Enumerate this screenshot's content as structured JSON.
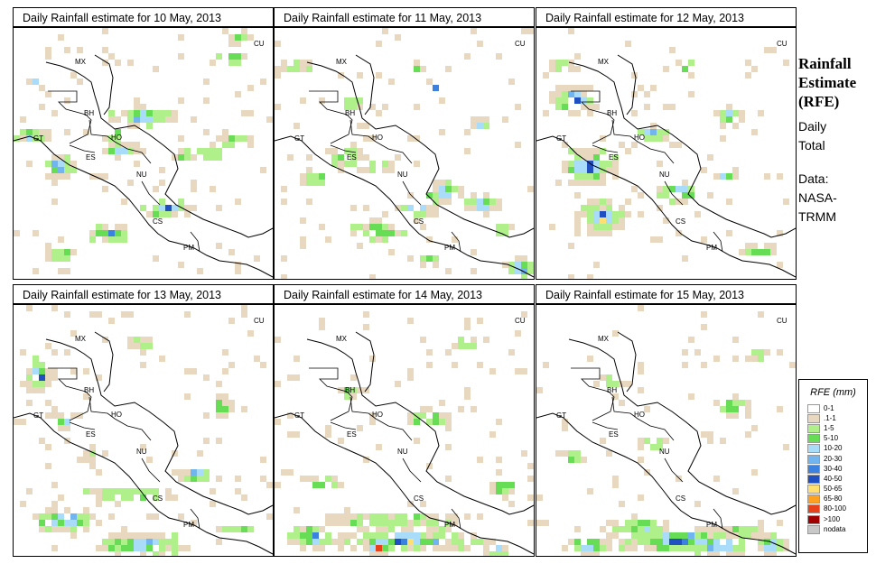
{
  "panels": [
    {
      "title": "Daily Rainfall estimate for  10 May, 2013",
      "rain": [
        [
          50,
          35,
          13,
          4,
          2
        ],
        [
          75,
          50,
          8,
          3,
          2
        ],
        [
          18,
          55,
          7,
          5,
          2
        ],
        [
          42,
          48,
          9,
          3,
          2
        ],
        [
          68,
          50,
          8,
          3,
          2
        ],
        [
          85,
          45,
          8,
          3,
          2
        ],
        [
          60,
          72,
          11,
          4,
          2
        ],
        [
          38,
          82,
          10,
          4,
          1
        ],
        [
          18,
          90,
          6,
          3,
          1
        ],
        [
          10,
          43,
          5,
          3,
          1
        ],
        [
          6,
          43,
          5,
          3,
          1
        ],
        [
          85,
          12,
          6,
          3,
          1
        ],
        [
          88,
          4,
          4,
          3,
          1
        ],
        [
          8,
          22,
          2,
          3,
          1
        ],
        [
          38,
          42,
          5,
          3,
          1
        ]
      ]
    },
    {
      "title": "Daily Rainfall estimate for  11 May, 2013",
      "rain": [
        [
          27,
          52,
          9,
          4,
          2
        ],
        [
          40,
          55,
          8,
          3,
          2
        ],
        [
          65,
          65,
          9,
          4,
          2
        ],
        [
          55,
          72,
          9,
          3,
          2
        ],
        [
          80,
          70,
          8,
          4,
          2
        ],
        [
          95,
          95,
          7,
          4,
          2
        ],
        [
          40,
          80,
          12,
          4,
          1
        ],
        [
          15,
          60,
          6,
          3,
          1
        ],
        [
          55,
          15,
          3,
          2,
          1
        ],
        [
          62,
          24,
          2,
          2,
          1
        ],
        [
          80,
          38,
          4,
          3,
          1
        ],
        [
          8,
          15,
          6,
          3,
          1
        ],
        [
          88,
          80,
          4,
          3,
          1
        ],
        [
          12,
          85,
          3,
          3,
          1
        ],
        [
          30,
          30,
          4,
          3,
          1
        ],
        [
          60,
          92,
          5,
          3,
          1
        ]
      ]
    },
    {
      "title": "Daily Rainfall estimate for  12 May, 2013",
      "rain": [
        [
          15,
          28,
          10,
          6,
          2
        ],
        [
          20,
          55,
          12,
          8,
          2
        ],
        [
          25,
          75,
          11,
          7,
          2
        ],
        [
          55,
          65,
          10,
          4,
          2
        ],
        [
          72,
          58,
          6,
          3,
          2
        ],
        [
          45,
          42,
          8,
          4,
          1
        ],
        [
          75,
          35,
          6,
          4,
          1
        ],
        [
          10,
          15,
          5,
          3,
          1
        ],
        [
          85,
          88,
          7,
          3,
          1
        ],
        [
          58,
          15,
          4,
          3,
          1
        ],
        [
          25,
          50,
          2,
          2,
          1
        ]
      ]
    },
    {
      "title": "Daily Rainfall estimate for  13 May, 2013",
      "rain": [
        [
          10,
          28,
          6,
          7,
          3
        ],
        [
          20,
          45,
          5,
          4,
          1
        ],
        [
          20,
          85,
          14,
          5,
          2
        ],
        [
          50,
          95,
          20,
          5,
          2
        ],
        [
          70,
          67,
          9,
          3,
          2
        ],
        [
          45,
          75,
          20,
          3,
          1
        ],
        [
          80,
          40,
          5,
          4,
          1
        ],
        [
          50,
          15,
          6,
          3,
          1
        ],
        [
          85,
          88,
          8,
          2,
          1
        ],
        [
          30,
          60,
          3,
          3,
          1
        ]
      ]
    },
    {
      "title": "Daily Rainfall estimate for  14 May, 2013",
      "rain": [
        [
          50,
          93,
          33,
          5,
          3
        ],
        [
          45,
          85,
          33,
          3,
          1
        ],
        [
          15,
          92,
          10,
          5,
          2
        ],
        [
          40,
          96,
          8,
          3,
          3
        ],
        [
          85,
          97,
          6,
          3,
          3
        ],
        [
          60,
          45,
          10,
          4,
          1
        ],
        [
          30,
          35,
          6,
          3,
          1
        ],
        [
          75,
          15,
          8,
          3,
          1
        ],
        [
          20,
          70,
          8,
          3,
          1
        ],
        [
          88,
          72,
          6,
          3,
          1
        ]
      ]
    },
    {
      "title": "Daily Rainfall estimate for  15 May, 2013",
      "rain": [
        [
          55,
          93,
          30,
          5,
          2
        ],
        [
          70,
          95,
          15,
          5,
          3
        ],
        [
          80,
          90,
          9,
          3,
          3
        ],
        [
          90,
          95,
          8,
          4,
          3
        ],
        [
          20,
          95,
          10,
          4,
          2
        ],
        [
          40,
          88,
          15,
          3,
          1
        ],
        [
          75,
          40,
          8,
          4,
          1
        ],
        [
          45,
          55,
          6,
          3,
          1
        ],
        [
          15,
          60,
          4,
          3,
          1
        ],
        [
          85,
          20,
          5,
          3,
          1
        ],
        [
          30,
          30,
          5,
          3,
          1
        ]
      ]
    }
  ],
  "map_labels": [
    "MX",
    "CU",
    "BH",
    "GT",
    "HO",
    "ES",
    "NU",
    "CS",
    "PM"
  ],
  "sidebar": {
    "title_line1": "Rainfall",
    "title_line2": "Estimate",
    "title_line3": "(RFE)",
    "period_line1": "Daily",
    "period_line2": "Total",
    "source_line1": "Data:",
    "source_line2": "NASA-",
    "source_line3": "TRMM"
  },
  "legend": {
    "title": "RFE (mm)",
    "items": [
      {
        "label": "0-1",
        "color": "#ffffff"
      },
      {
        "label": ".1-1",
        "color": "#e8d8c0"
      },
      {
        "label": "1-5",
        "color": "#b0f08a"
      },
      {
        "label": "5-10",
        "color": "#66dd55"
      },
      {
        "label": "10-20",
        "color": "#a8dcf8"
      },
      {
        "label": "20-30",
        "color": "#70b4f0"
      },
      {
        "label": "30-40",
        "color": "#3b82e0"
      },
      {
        "label": "40-50",
        "color": "#1f4fc0"
      },
      {
        "label": "50-65",
        "color": "#ffe070"
      },
      {
        "label": "65-80",
        "color": "#ffa020"
      },
      {
        "label": "80-100",
        "color": "#e84018"
      },
      {
        "label": ">100",
        "color": "#a00000"
      },
      {
        "label": "nodata",
        "color": "#c8c8c8"
      }
    ]
  }
}
